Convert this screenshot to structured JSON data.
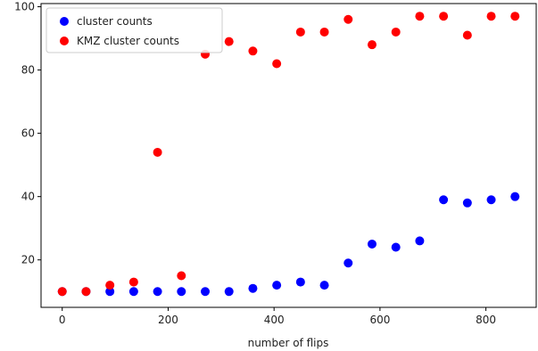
{
  "chart_data": {
    "type": "scatter",
    "xlabel": "number of flips",
    "ylabel": "",
    "xlim": [
      -40,
      895
    ],
    "ylim": [
      5,
      101
    ],
    "xticks": [
      0,
      200,
      400,
      600,
      800
    ],
    "yticks": [
      20,
      40,
      60,
      80,
      100
    ],
    "grid": false,
    "legend_position": "top-left",
    "x": [
      0,
      45,
      90,
      135,
      180,
      225,
      270,
      315,
      360,
      405,
      450,
      495,
      540,
      585,
      630,
      675,
      720,
      765,
      810,
      855
    ],
    "series": [
      {
        "name": "cluster counts",
        "color": "#0000ff",
        "values": [
          10,
          10,
          10,
          10,
          10,
          10,
          10,
          10,
          11,
          12,
          13,
          12,
          19,
          25,
          24,
          26,
          39,
          38,
          39,
          40
        ]
      },
      {
        "name": "KMZ cluster counts",
        "color": "#ff0000",
        "values": [
          10,
          10,
          12,
          13,
          54,
          15,
          85,
          89,
          86,
          82,
          92,
          92,
          96,
          88,
          92,
          97,
          97,
          91,
          97,
          97
        ]
      }
    ]
  }
}
